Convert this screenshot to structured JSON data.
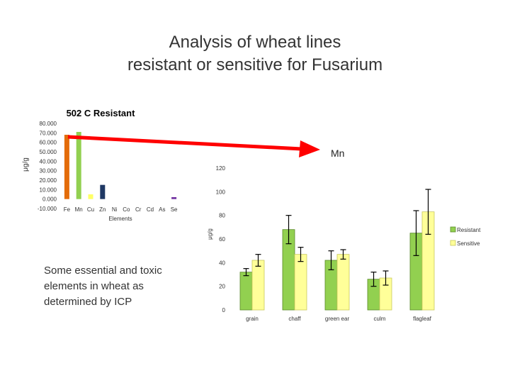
{
  "slide": {
    "title_line1": "Analysis of wheat lines",
    "title_line2": "resistant or sensitive for Fusarium",
    "note": "Some essential and toxic elements in wheat as determined by ICP",
    "arrow_label": "Mn"
  },
  "colors": {
    "resistant": "#92d050",
    "sensitive": "#ffff99",
    "arrow": "#ff0000"
  },
  "chart_data": [
    {
      "type": "bar",
      "title": "502 C Resistant",
      "xlabel": "Elements",
      "ylabel": "μg/g",
      "categories": [
        "Fe",
        "Mn",
        "Cu",
        "Zn",
        "Ni",
        "Co",
        "Cr",
        "Cd",
        "As",
        "Se"
      ],
      "values": [
        68,
        71,
        5,
        15,
        0,
        0,
        0,
        0,
        0,
        2
      ],
      "bar_colors": [
        "#e36c0a",
        "#92d050",
        "#ffff66",
        "#1f3864",
        "#cccccc",
        "#cccccc",
        "#cccccc",
        "#cccccc",
        "#cccccc",
        "#7030a0"
      ],
      "ylim": [
        -10,
        80
      ],
      "yticks": [
        "80.000",
        "70.000",
        "60.000",
        "50.000",
        "40.000",
        "30.000",
        "20.000",
        "10.000",
        "0.000",
        "-10.000"
      ]
    },
    {
      "type": "bar",
      "title": "",
      "xlabel": "",
      "ylabel": "μg/g",
      "categories": [
        "grain",
        "chaff",
        "green ear",
        "culm",
        "flagleaf"
      ],
      "series": [
        {
          "name": "Resistant",
          "values": [
            32,
            68,
            42,
            26,
            65
          ],
          "errors": [
            3,
            12,
            8,
            6,
            19
          ]
        },
        {
          "name": "Sensitive",
          "values": [
            42,
            47,
            47,
            27,
            83
          ],
          "errors": [
            5,
            6,
            4,
            6,
            19
          ]
        }
      ],
      "ylim": [
        0,
        120
      ],
      "yticks": [
        "120",
        "100",
        "80",
        "60",
        "40",
        "20",
        "0"
      ],
      "legend": "right"
    }
  ]
}
